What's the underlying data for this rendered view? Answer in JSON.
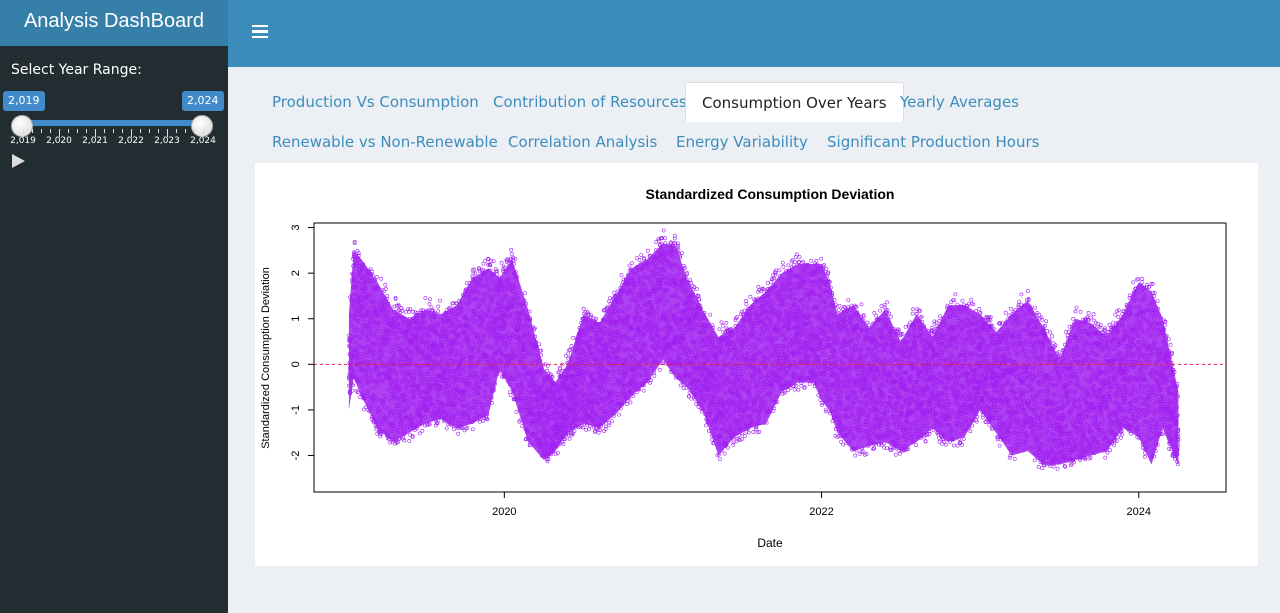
{
  "app": {
    "title": "Analysis DashBoard"
  },
  "sidebar": {
    "slider_label": "Select Year Range:",
    "range_from": "2,019",
    "range_to": "2,024",
    "tick_labels": [
      "2,019",
      "2,020",
      "2,021",
      "2,022",
      "2,023",
      "2,024"
    ]
  },
  "tabs": [
    {
      "label": "Production Vs Consumption",
      "active": false
    },
    {
      "label": "Contribution of Resources",
      "active": false
    },
    {
      "label": "Consumption Over Years",
      "active": true
    },
    {
      "label": "Yearly Averages",
      "active": false
    },
    {
      "label": "Renewable vs Non-Renewable",
      "active": false
    },
    {
      "label": "Correlation Analysis",
      "active": false
    },
    {
      "label": "Energy Variability",
      "active": false
    },
    {
      "label": "Significant Production Hours",
      "active": false
    }
  ],
  "colors": {
    "accent": "#3c8dbc",
    "logo_bg": "#367fa9",
    "sidebar_bg": "#222d32",
    "series": "#a020f0",
    "reference_line": "#e0224a"
  },
  "chart_data": {
    "type": "scatter",
    "title": "Standardized Consumption Deviation",
    "xlabel": "Date",
    "ylabel": "Standardized Consumption Deviation",
    "x_ticks": [
      "2020",
      "2022",
      "2024"
    ],
    "y_ticks": [
      "-2",
      "-1",
      "0",
      "1",
      "2",
      "3"
    ],
    "xlim": [
      2018.8,
      2024.55
    ],
    "ylim": [
      -2.8,
      3.1
    ],
    "reference_line": 0,
    "series": [
      {
        "envelope_x": [
          2019.02,
          2019.05,
          2019.1,
          2019.2,
          2019.3,
          2019.4,
          2019.5,
          2019.6,
          2019.7,
          2019.8,
          2019.9,
          2019.97,
          2020.05,
          2020.15,
          2020.25,
          2020.32,
          2020.4,
          2020.5,
          2020.6,
          2020.7,
          2020.8,
          2020.9,
          2021.0,
          2021.08,
          2021.15,
          2021.25,
          2021.35,
          2021.45,
          2021.55,
          2021.65,
          2021.75,
          2021.85,
          2021.95,
          2022.0,
          2022.05,
          2022.1,
          2022.2,
          2022.3,
          2022.4,
          2022.5,
          2022.6,
          2022.7,
          2022.8,
          2022.9,
          2023.0,
          2023.1,
          2023.2,
          2023.3,
          2023.4,
          2023.5,
          2023.6,
          2023.7,
          2023.8,
          2023.9,
          2024.0,
          2024.08,
          2024.15,
          2024.25
        ],
        "upper": [
          1.4,
          2.8,
          2.6,
          2.1,
          1.5,
          1.3,
          1.5,
          1.4,
          1.6,
          2.2,
          2.4,
          2.2,
          2.6,
          1.5,
          0.2,
          -0.1,
          0.3,
          1.4,
          1.2,
          1.8,
          2.4,
          2.6,
          2.95,
          2.9,
          2.2,
          1.5,
          0.9,
          1.1,
          1.6,
          1.9,
          2.3,
          2.5,
          2.5,
          2.5,
          2.1,
          1.4,
          1.6,
          1.1,
          1.5,
          0.8,
          1.4,
          0.9,
          1.6,
          1.6,
          1.4,
          1.0,
          1.4,
          1.7,
          1.1,
          0.4,
          1.3,
          1.2,
          0.9,
          1.4,
          2.1,
          1.9,
          1.3,
          -0.3
        ],
        "lower": [
          -1.2,
          -0.5,
          -0.9,
          -1.6,
          -1.9,
          -1.7,
          -1.5,
          -1.4,
          -1.6,
          -1.5,
          -1.3,
          -0.3,
          -0.8,
          -1.9,
          -2.3,
          -2.1,
          -1.7,
          -1.5,
          -1.6,
          -1.3,
          -0.9,
          -0.6,
          -0.1,
          -0.5,
          -0.7,
          -1.2,
          -2.2,
          -1.8,
          -1.6,
          -1.5,
          -0.8,
          -0.6,
          -0.6,
          -1.0,
          -1.2,
          -1.7,
          -2.1,
          -2.0,
          -1.9,
          -2.1,
          -1.9,
          -1.6,
          -1.9,
          -1.8,
          -1.2,
          -1.7,
          -2.2,
          -2.1,
          -2.4,
          -2.4,
          -2.3,
          -2.2,
          -2.1,
          -1.6,
          -1.8,
          -2.4,
          -1.6,
          -2.4
        ]
      }
    ]
  }
}
